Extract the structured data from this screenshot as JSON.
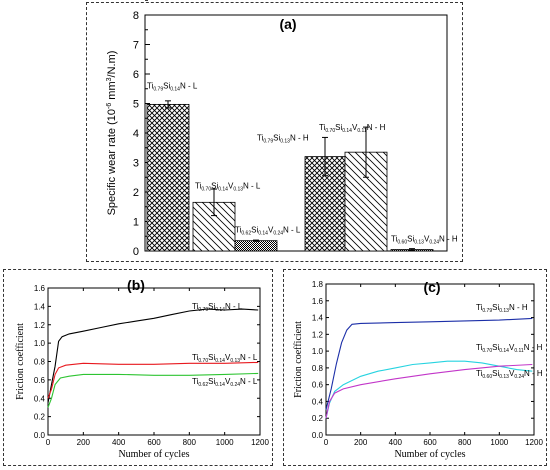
{
  "chart_data": [
    {
      "panel": "(a)",
      "type": "bar",
      "ylabel_parts": [
        "Specific wear rate (10",
        "-6",
        " mm",
        "3",
        "/N.m)"
      ],
      "ylim": [
        0,
        8
      ],
      "yticks": [
        0,
        1,
        2,
        3,
        4,
        5,
        6,
        7,
        8
      ],
      "grid": false,
      "categories": [
        {
          "parts": [
            [
              "Ti",
              ""
            ],
            [
              "0.79",
              "sub"
            ],
            [
              "Si",
              ""
            ],
            [
              "0.14",
              "sub"
            ],
            [
              "N - L",
              ""
            ]
          ]
        },
        {
          "parts": [
            [
              "Ti",
              ""
            ],
            [
              "0.70",
              "sub"
            ],
            [
              "Si",
              ""
            ],
            [
              "0.14",
              "sub"
            ],
            [
              "V",
              ""
            ],
            [
              "0.13",
              "sub"
            ],
            [
              "N - L",
              ""
            ]
          ]
        },
        {
          "parts": [
            [
              "Ti",
              ""
            ],
            [
              "0.62",
              "sub"
            ],
            [
              "Si",
              ""
            ],
            [
              "0.14",
              "sub"
            ],
            [
              "V",
              ""
            ],
            [
              "0.24",
              "sub"
            ],
            [
              "N - L",
              ""
            ]
          ]
        },
        {
          "parts": [
            [
              "Ti",
              ""
            ],
            [
              "0.79",
              "sub"
            ],
            [
              "Si",
              ""
            ],
            [
              "0.13",
              "sub"
            ],
            [
              "N - H",
              ""
            ]
          ]
        },
        {
          "parts": [
            [
              "Ti",
              ""
            ],
            [
              "0.70",
              "sub"
            ],
            [
              "Si",
              ""
            ],
            [
              "0.14",
              "sub"
            ],
            [
              "V",
              ""
            ],
            [
              "0.11",
              "sub"
            ],
            [
              "N - H",
              ""
            ]
          ]
        },
        {
          "parts": [
            [
              "Ti",
              ""
            ],
            [
              "0.60",
              "sub"
            ],
            [
              "Si",
              ""
            ],
            [
              "0.13",
              "sub"
            ],
            [
              "V",
              ""
            ],
            [
              "0.24",
              "sub"
            ],
            [
              "N - H",
              ""
            ]
          ]
        }
      ],
      "values": [
        4.97,
        1.65,
        0.35,
        3.2,
        3.35,
        0.05
      ],
      "errors": [
        0.12,
        0.45,
        0.02,
        0.65,
        0.85,
        0.03
      ],
      "patterns": [
        "crosshatch",
        "diagonal",
        "dense",
        "crosshatch",
        "diagonal",
        "dense"
      ]
    },
    {
      "panel": "(b)",
      "type": "line",
      "xlabel": "Number of cycles",
      "ylabel": "Friction coefficient",
      "xlim": [
        0,
        1200
      ],
      "ylim": [
        0.0,
        1.6
      ],
      "xticks": [
        0,
        200,
        400,
        600,
        800,
        1000,
        1200
      ],
      "yticks": [
        "0.0",
        "0.2",
        "0.4",
        "0.6",
        "0.8",
        "1.0",
        "1.2",
        "1.4",
        "1.6"
      ],
      "series": [
        {
          "parts": [
            [
              "Ti",
              ""
            ],
            [
              "0.79",
              "sub"
            ],
            [
              "Si",
              ""
            ],
            [
              "0.14",
              "sub"
            ],
            [
              "N - L",
              ""
            ]
          ],
          "color": "#000000",
          "points": [
            [
              0,
              0.35
            ],
            [
              20,
              0.55
            ],
            [
              40,
              0.75
            ],
            [
              60,
              1.02
            ],
            [
              80,
              1.07
            ],
            [
              120,
              1.1
            ],
            [
              200,
              1.13
            ],
            [
              300,
              1.17
            ],
            [
              400,
              1.21
            ],
            [
              500,
              1.24
            ],
            [
              600,
              1.27
            ],
            [
              700,
              1.31
            ],
            [
              800,
              1.35
            ],
            [
              900,
              1.37
            ],
            [
              1000,
              1.36
            ],
            [
              1100,
              1.37
            ],
            [
              1190,
              1.36
            ]
          ]
        },
        {
          "parts": [
            [
              "Ti",
              ""
            ],
            [
              "0.70",
              "sub"
            ],
            [
              "Si",
              ""
            ],
            [
              "0.14",
              "sub"
            ],
            [
              "V",
              ""
            ],
            [
              "0.13",
              "sub"
            ],
            [
              "N - L",
              ""
            ]
          ],
          "color": "#e8191f",
          "points": [
            [
              0,
              0.4
            ],
            [
              20,
              0.5
            ],
            [
              40,
              0.66
            ],
            [
              60,
              0.73
            ],
            [
              100,
              0.76
            ],
            [
              200,
              0.78
            ],
            [
              400,
              0.77
            ],
            [
              600,
              0.77
            ],
            [
              800,
              0.78
            ],
            [
              1000,
              0.78
            ],
            [
              1190,
              0.79
            ]
          ]
        },
        {
          "parts": [
            [
              "Ti",
              ""
            ],
            [
              "0.62",
              "sub"
            ],
            [
              "Si",
              ""
            ],
            [
              "0.14",
              "sub"
            ],
            [
              "V",
              ""
            ],
            [
              "0.24",
              "sub"
            ],
            [
              "N - L",
              ""
            ]
          ],
          "color": "#2ec432",
          "points": [
            [
              0,
              0.3
            ],
            [
              20,
              0.4
            ],
            [
              40,
              0.55
            ],
            [
              70,
              0.62
            ],
            [
              120,
              0.64
            ],
            [
              200,
              0.66
            ],
            [
              400,
              0.66
            ],
            [
              600,
              0.65
            ],
            [
              800,
              0.65
            ],
            [
              1000,
              0.66
            ],
            [
              1190,
              0.67
            ]
          ]
        }
      ]
    },
    {
      "panel": "(c)",
      "type": "line",
      "xlabel": "Number of cycles",
      "ylabel": "Friction coefficient",
      "xlim": [
        0,
        1200
      ],
      "ylim": [
        0.0,
        1.8
      ],
      "xticks": [
        0,
        200,
        400,
        600,
        800,
        1000,
        1200
      ],
      "yticks": [
        "0.0",
        "0.2",
        "0.4",
        "0.6",
        "0.8",
        "1.0",
        "1.2",
        "1.4",
        "1.6",
        "1.8"
      ],
      "series": [
        {
          "parts": [
            [
              "Ti",
              ""
            ],
            [
              "0.79",
              "sub"
            ],
            [
              "Si",
              ""
            ],
            [
              "0.13",
              "sub"
            ],
            [
              "N - H",
              ""
            ]
          ],
          "color": "#1c2fa8",
          "points": [
            [
              0,
              0.3
            ],
            [
              30,
              0.55
            ],
            [
              60,
              0.85
            ],
            [
              90,
              1.1
            ],
            [
              120,
              1.25
            ],
            [
              150,
              1.32
            ],
            [
              200,
              1.33
            ],
            [
              400,
              1.34
            ],
            [
              600,
              1.35
            ],
            [
              800,
              1.36
            ],
            [
              1000,
              1.37
            ],
            [
              1190,
              1.39
            ]
          ]
        },
        {
          "parts": [
            [
              "Ti",
              ""
            ],
            [
              "0.70",
              "sub"
            ],
            [
              "Si",
              ""
            ],
            [
              "0.14",
              "sub"
            ],
            [
              "V",
              ""
            ],
            [
              "0.11",
              "sub"
            ],
            [
              "N - H",
              ""
            ]
          ],
          "color": "#27d3e0",
          "points": [
            [
              0,
              0.2
            ],
            [
              20,
              0.38
            ],
            [
              50,
              0.52
            ],
            [
              100,
              0.6
            ],
            [
              200,
              0.7
            ],
            [
              300,
              0.76
            ],
            [
              400,
              0.8
            ],
            [
              500,
              0.84
            ],
            [
              600,
              0.86
            ],
            [
              700,
              0.88
            ],
            [
              800,
              0.88
            ],
            [
              900,
              0.86
            ],
            [
              1000,
              0.82
            ],
            [
              1100,
              0.78
            ],
            [
              1190,
              0.76
            ]
          ]
        },
        {
          "parts": [
            [
              "Ti",
              ""
            ],
            [
              "0.60",
              "sub"
            ],
            [
              "Si",
              ""
            ],
            [
              "0.13",
              "sub"
            ],
            [
              "V",
              ""
            ],
            [
              "0.24",
              "sub"
            ],
            [
              "N - H",
              ""
            ]
          ],
          "color": "#c236c9",
          "points": [
            [
              0,
              0.2
            ],
            [
              20,
              0.4
            ],
            [
              50,
              0.5
            ],
            [
              100,
              0.55
            ],
            [
              200,
              0.6
            ],
            [
              400,
              0.67
            ],
            [
              600,
              0.73
            ],
            [
              800,
              0.78
            ],
            [
              1000,
              0.82
            ],
            [
              1190,
              0.84
            ]
          ]
        }
      ]
    }
  ]
}
